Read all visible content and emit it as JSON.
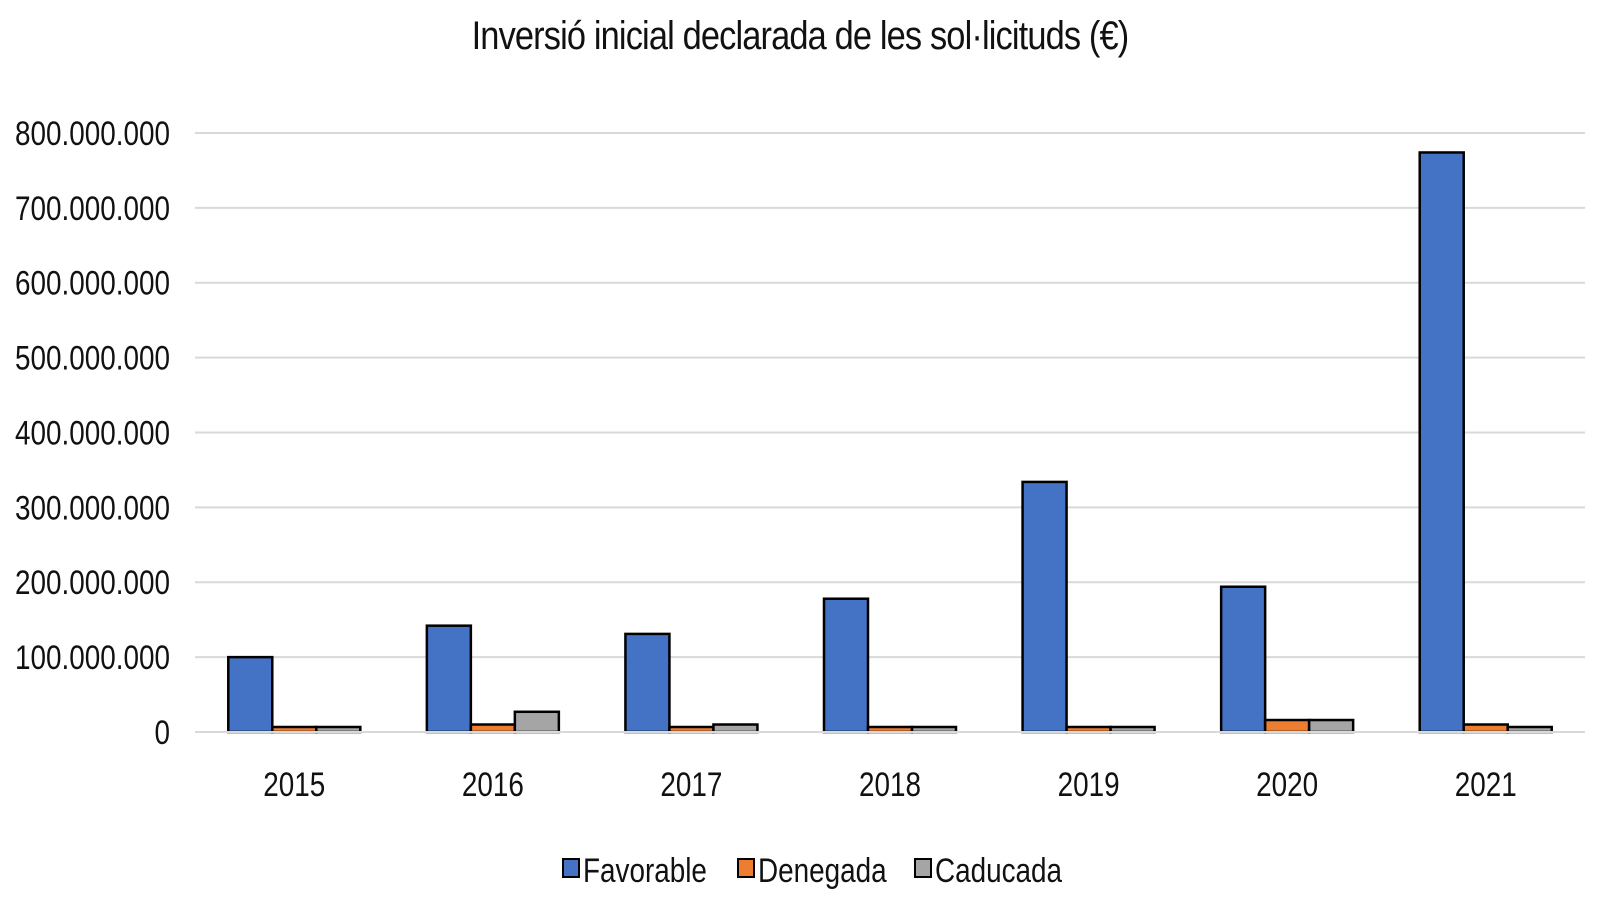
{
  "chart_data": {
    "type": "bar",
    "title": "Inversió  inicial declarada  de les sol·licituds (€)",
    "categories": [
      "2015",
      "2016",
      "2017",
      "2018",
      "2019",
      "2020",
      "2021"
    ],
    "series": [
      {
        "name": "Favorable",
        "color": "#4472C4",
        "values": [
          100000000,
          142000000,
          131000000,
          178000000,
          334000000,
          194000000,
          774000000
        ]
      },
      {
        "name": "Denegada",
        "color": "#ED7D31",
        "values": [
          0,
          10000000,
          2000000,
          1000000,
          1000000,
          16000000,
          10000000
        ]
      },
      {
        "name": "Caducada",
        "color": "#A5A5A5",
        "values": [
          1000000,
          27000000,
          10000000,
          0,
          0,
          16000000,
          0
        ]
      }
    ],
    "ylim": [
      0,
      800000000
    ],
    "yticks": [
      "0",
      "100.000.000",
      "200.000.000",
      "300.000.000",
      "400.000.000",
      "500.000.000",
      "600.000.000",
      "700.000.000",
      "800.000.000"
    ],
    "grid": true,
    "legend_position": "bottom"
  }
}
